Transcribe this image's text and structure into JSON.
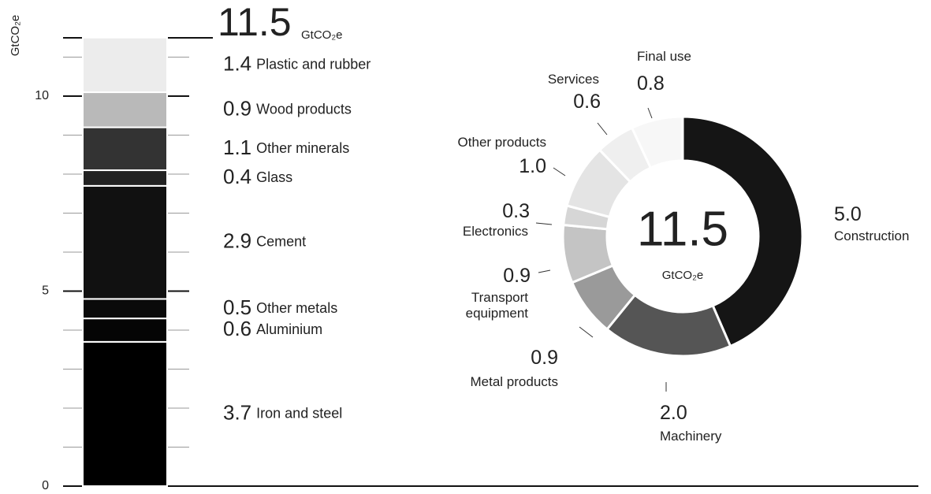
{
  "chart_data": [
    {
      "type": "stacked_bar",
      "ylabel": "GtCO₂e",
      "total": 11.5,
      "total_unit": "GtCO₂e",
      "ylim": [
        0,
        12
      ],
      "yticks": [
        0,
        5,
        10
      ],
      "yminorticks": [
        1,
        2,
        3,
        4,
        6,
        7,
        8,
        9,
        11
      ],
      "series": [
        {
          "name": "Iron and steel",
          "color": "#000000",
          "value": 3.7
        },
        {
          "name": "Aluminium",
          "color": "#050505",
          "value": 0.6
        },
        {
          "name": "Other metals",
          "color": "#0a0a0a",
          "value": 0.5
        },
        {
          "name": "Cement",
          "color": "#111111",
          "value": 2.9
        },
        {
          "name": "Glass",
          "color": "#222222",
          "value": 0.4
        },
        {
          "name": "Other minerals",
          "color": "#333333",
          "value": 1.1
        },
        {
          "name": "Wood products",
          "color": "#b9b9b9",
          "value": 0.9
        },
        {
          "name": "Plastic and rubber",
          "color": "#ececec",
          "value": 1.4
        }
      ]
    },
    {
      "type": "donut",
      "total": 11.5,
      "total_unit": "GtCO₂e",
      "categories": [
        "Construction",
        "Machinery",
        "Metal products",
        "Transport equipment",
        "Electronics",
        "Other products",
        "Services",
        "Final use"
      ],
      "values": [
        5.0,
        2.0,
        0.9,
        0.9,
        0.3,
        1.0,
        0.6,
        0.8
      ],
      "value_labels": [
        "5.0",
        "2.0",
        "0.9",
        "0.9",
        "0.3",
        "1.0",
        "0.6",
        "0.8"
      ],
      "colors": [
        "#151515",
        "#555555",
        "#9a9a9a",
        "#c4c4c4",
        "#d6d6d6",
        "#e4e4e4",
        "#efefef",
        "#f7f7f7"
      ]
    }
  ]
}
